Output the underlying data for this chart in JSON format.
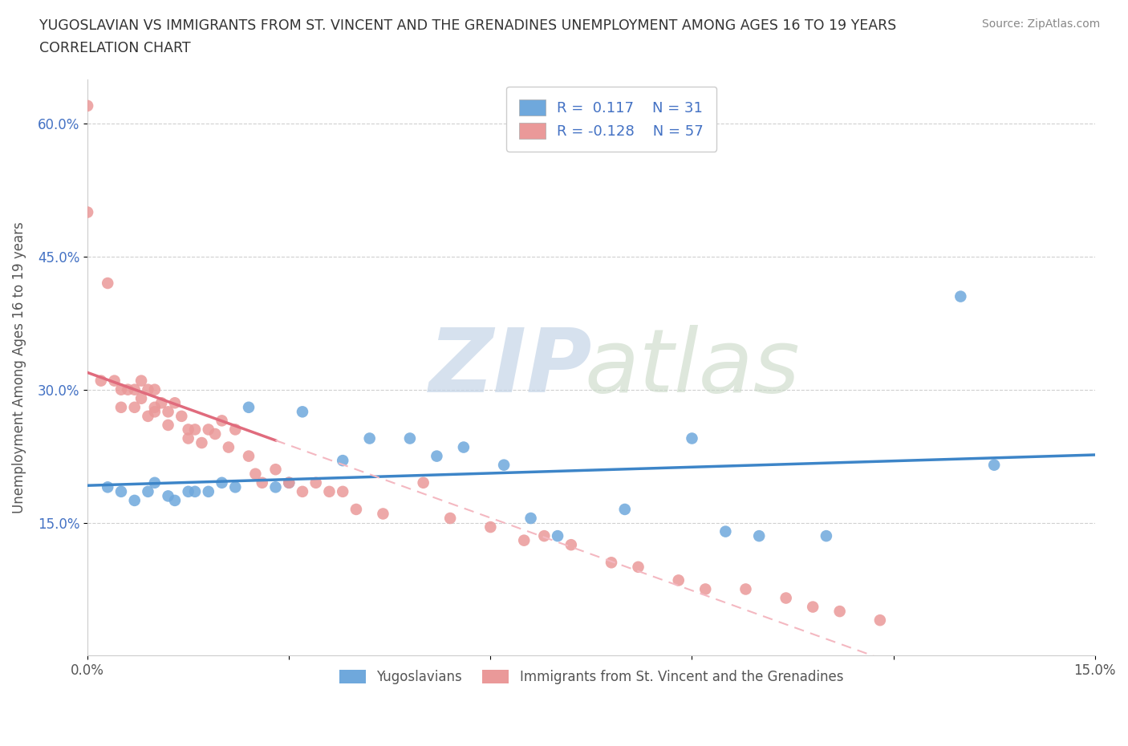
{
  "title_line1": "YUGOSLAVIAN VS IMMIGRANTS FROM ST. VINCENT AND THE GRENADINES UNEMPLOYMENT AMONG AGES 16 TO 19 YEARS",
  "title_line2": "CORRELATION CHART",
  "source": "Source: ZipAtlas.com",
  "ylabel": "Unemployment Among Ages 16 to 19 years",
  "xlim": [
    0.0,
    0.15
  ],
  "ylim": [
    0.0,
    0.65
  ],
  "xticks": [
    0.0,
    0.03,
    0.06,
    0.09,
    0.12,
    0.15
  ],
  "xticklabels": [
    "0.0%",
    "",
    "",
    "",
    "",
    "15.0%"
  ],
  "yticks": [
    0.15,
    0.3,
    0.45,
    0.6
  ],
  "yticklabels": [
    "15.0%",
    "30.0%",
    "45.0%",
    "60.0%"
  ],
  "blue_color": "#6fa8dc",
  "pink_color": "#ea9999",
  "blue_line_color": "#3d85c8",
  "pink_line_color": "#e06b7d",
  "pink_line_dashed_color": "#f4b8c1",
  "r_blue": 0.117,
  "n_blue": 31,
  "r_pink": -0.128,
  "n_pink": 57,
  "blue_x": [
    0.003,
    0.005,
    0.007,
    0.009,
    0.01,
    0.012,
    0.013,
    0.015,
    0.016,
    0.018,
    0.02,
    0.022,
    0.024,
    0.028,
    0.03,
    0.032,
    0.038,
    0.042,
    0.048,
    0.052,
    0.056,
    0.062,
    0.066,
    0.07,
    0.08,
    0.09,
    0.095,
    0.1,
    0.11,
    0.13,
    0.135
  ],
  "blue_y": [
    0.19,
    0.185,
    0.175,
    0.185,
    0.195,
    0.18,
    0.175,
    0.185,
    0.185,
    0.185,
    0.195,
    0.19,
    0.28,
    0.19,
    0.195,
    0.275,
    0.22,
    0.245,
    0.245,
    0.225,
    0.235,
    0.215,
    0.155,
    0.135,
    0.165,
    0.245,
    0.14,
    0.135,
    0.135,
    0.405,
    0.215
  ],
  "pink_x": [
    0.0,
    0.0,
    0.002,
    0.003,
    0.004,
    0.005,
    0.005,
    0.006,
    0.007,
    0.007,
    0.008,
    0.008,
    0.009,
    0.009,
    0.01,
    0.01,
    0.01,
    0.011,
    0.012,
    0.012,
    0.013,
    0.014,
    0.015,
    0.015,
    0.016,
    0.017,
    0.018,
    0.019,
    0.02,
    0.021,
    0.022,
    0.024,
    0.025,
    0.026,
    0.028,
    0.03,
    0.032,
    0.034,
    0.036,
    0.038,
    0.04,
    0.044,
    0.05,
    0.054,
    0.06,
    0.065,
    0.068,
    0.072,
    0.078,
    0.082,
    0.088,
    0.092,
    0.098,
    0.104,
    0.108,
    0.112,
    0.118
  ],
  "pink_y": [
    0.62,
    0.5,
    0.31,
    0.42,
    0.31,
    0.3,
    0.28,
    0.3,
    0.3,
    0.28,
    0.29,
    0.31,
    0.3,
    0.27,
    0.3,
    0.28,
    0.275,
    0.285,
    0.275,
    0.26,
    0.285,
    0.27,
    0.255,
    0.245,
    0.255,
    0.24,
    0.255,
    0.25,
    0.265,
    0.235,
    0.255,
    0.225,
    0.205,
    0.195,
    0.21,
    0.195,
    0.185,
    0.195,
    0.185,
    0.185,
    0.165,
    0.16,
    0.195,
    0.155,
    0.145,
    0.13,
    0.135,
    0.125,
    0.105,
    0.1,
    0.085,
    0.075,
    0.075,
    0.065,
    0.055,
    0.05,
    0.04
  ]
}
